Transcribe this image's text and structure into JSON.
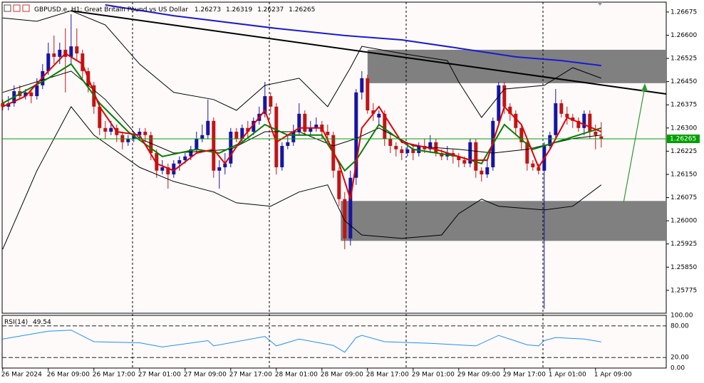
{
  "chart_data": {
    "type": "candlestick",
    "title": "GBPUSD.e, H1:  Great Britain Pound vs US Dollar",
    "categories": [
      "26 Mar 2024",
      null,
      null,
      null,
      null,
      null,
      null,
      null,
      "26 Mar 09:00",
      null,
      null,
      null,
      null,
      null,
      null,
      null,
      "26 Mar 17:00",
      null,
      null,
      null,
      null,
      null,
      null,
      null,
      "27 Mar 01:00",
      null,
      null,
      null,
      null,
      null,
      null,
      null,
      "27 Mar 09:00",
      null,
      null,
      null,
      null,
      null,
      null,
      null,
      "27 Mar 17:00",
      null,
      null,
      null,
      null,
      null,
      null,
      null,
      "28 Mar 01:00",
      null,
      null,
      null,
      null,
      null,
      null,
      null,
      "28 Mar 09:00",
      null,
      null,
      null,
      null,
      null,
      null,
      null,
      "28 Mar 17:00",
      null,
      null,
      null,
      null,
      null,
      null,
      null,
      "29 Mar 01:00",
      null,
      null,
      null,
      null,
      null,
      null,
      null,
      "29 Mar 09:00",
      null,
      null,
      null,
      null,
      null,
      null,
      null,
      "29 Mar 17:00",
      null,
      null,
      null,
      null,
      null,
      null,
      null,
      "1 Apr 01:00",
      null,
      null,
      null,
      null,
      null,
      null,
      null,
      "1 Apr 09:00",
      null
    ],
    "open": [
      1.2638,
      1.26369,
      1.2638,
      1.26419,
      1.26403,
      1.26415,
      1.26403,
      1.26438,
      1.26484,
      1.26541,
      1.2653,
      1.26553,
      1.2653,
      1.26564,
      1.26541,
      1.26484,
      1.26438,
      1.26369,
      1.263,
      1.26288,
      1.263,
      1.26277,
      1.26254,
      1.26266,
      1.26277,
      1.26288,
      1.26277,
      1.26219,
      1.26162,
      1.26173,
      1.2615,
      1.26185,
      1.26196,
      1.26208,
      1.26231,
      1.26266,
      1.26277,
      1.26323,
      1.26162,
      1.26173,
      1.26185,
      1.26288,
      1.26266,
      1.263,
      1.26288,
      1.26323,
      1.26346,
      1.26403,
      1.26369,
      1.26173,
      1.26242,
      1.26254,
      1.26288,
      1.26346,
      1.26288,
      1.263,
      1.26311,
      1.26288,
      1.26277,
      1.26162,
      1.2607,
      1.25943,
      1.26139,
      1.26415,
      1.26461,
      1.26357,
      1.26334,
      1.26346,
      1.26266,
      1.26242,
      1.26231,
      1.26219,
      1.26231,
      1.26219,
      1.26242,
      1.26231,
      1.26254,
      1.26219,
      1.26208,
      1.26219,
      1.26208,
      1.26196,
      1.26185,
      1.26254,
      1.26162,
      1.2615,
      1.26173,
      1.26323,
      1.26438,
      1.26369,
      1.26346,
      1.263,
      1.26254,
      1.26185,
      1.26173,
      1.26162,
      1.26242,
      1.26277,
      1.2638,
      1.26346,
      1.26334,
      1.26323,
      1.263,
      1.26346,
      1.26288,
      1.26273
    ],
    "high": [
      1.26392,
      1.26403,
      1.26438,
      1.26438,
      1.26426,
      1.26426,
      1.26461,
      1.26507,
      1.26576,
      1.26599,
      1.26576,
      1.26622,
      1.26668,
      1.26622,
      1.26553,
      1.26495,
      1.26449,
      1.2638,
      1.26323,
      1.26323,
      1.26311,
      1.26288,
      1.26277,
      1.26288,
      1.263,
      1.263,
      1.26288,
      1.26231,
      1.26196,
      1.26185,
      1.26196,
      1.26208,
      1.26219,
      1.26242,
      1.26288,
      1.26311,
      1.26392,
      1.26334,
      1.26196,
      1.26219,
      1.263,
      1.263,
      1.26311,
      1.26323,
      1.26334,
      1.26369,
      1.26449,
      1.26415,
      1.2638,
      1.26254,
      1.26277,
      1.26311,
      1.2638,
      1.26357,
      1.26323,
      1.26334,
      1.26323,
      1.26311,
      1.26288,
      1.26173,
      1.26093,
      1.26162,
      1.26426,
      1.26484,
      1.26472,
      1.2638,
      1.26357,
      1.26357,
      1.26288,
      1.26254,
      1.26242,
      1.26254,
      1.26242,
      1.26254,
      1.26266,
      1.26277,
      1.26266,
      1.26231,
      1.26242,
      1.26231,
      1.26219,
      1.26208,
      1.26266,
      1.26266,
      1.26173,
      1.26196,
      1.26334,
      1.26449,
      1.26449,
      1.2638,
      1.26357,
      1.26311,
      1.26266,
      1.26196,
      1.26185,
      1.26254,
      1.26288,
      1.26426,
      1.26392,
      1.26369,
      1.26346,
      1.26334,
      1.26357,
      1.26357,
      1.26311,
      1.26319
    ],
    "low": [
      1.26357,
      1.26357,
      1.26369,
      1.26392,
      1.26392,
      1.2638,
      1.26392,
      1.26426,
      1.26472,
      1.26507,
      1.26507,
      1.26415,
      1.26507,
      1.26518,
      1.26461,
      1.26415,
      1.26346,
      1.26277,
      1.26266,
      1.26277,
      1.26254,
      1.26231,
      1.26242,
      1.26254,
      1.26266,
      1.26254,
      1.26196,
      1.26139,
      1.2615,
      1.26104,
      1.26139,
      1.26162,
      1.26185,
      1.26196,
      1.26219,
      1.26254,
      1.26266,
      1.26139,
      1.26104,
      1.2615,
      1.26173,
      1.26254,
      1.26254,
      1.26266,
      1.26277,
      1.26311,
      1.26334,
      1.26346,
      1.2615,
      1.26162,
      1.26231,
      1.26242,
      1.26277,
      1.26277,
      1.26277,
      1.26288,
      1.26266,
      1.26254,
      1.26139,
      1.26047,
      1.25908,
      1.2592,
      1.26116,
      1.26392,
      1.26346,
      1.26323,
      1.26311,
      1.26242,
      1.26219,
      1.26208,
      1.26196,
      1.26208,
      1.26196,
      1.26208,
      1.26219,
      1.26219,
      1.26208,
      1.26196,
      1.26196,
      1.26185,
      1.26173,
      1.26173,
      1.26173,
      1.26139,
      1.26127,
      1.26139,
      1.26162,
      1.26311,
      1.26346,
      1.26323,
      1.26277,
      1.26231,
      1.26162,
      1.26162,
      1.2615,
      1.25715,
      1.26231,
      1.26266,
      1.26334,
      1.26311,
      1.263,
      1.26288,
      1.26277,
      1.26266,
      1.26231,
      1.26237
    ],
    "close": [
      1.26369,
      1.2638,
      1.26419,
      1.26403,
      1.26415,
      1.26403,
      1.26438,
      1.26484,
      1.26541,
      1.2653,
      1.26553,
      1.2653,
      1.26564,
      1.26541,
      1.26484,
      1.26438,
      1.26369,
      1.263,
      1.26288,
      1.263,
      1.26277,
      1.26254,
      1.26266,
      1.26277,
      1.26288,
      1.26277,
      1.26219,
      1.26162,
      1.26173,
      1.2615,
      1.26185,
      1.26196,
      1.26208,
      1.26231,
      1.26266,
      1.26277,
      1.26323,
      1.26162,
      1.26173,
      1.26185,
      1.26288,
      1.26266,
      1.263,
      1.26288,
      1.26323,
      1.26346,
      1.26403,
      1.26369,
      1.26173,
      1.26242,
      1.26254,
      1.26288,
      1.26346,
      1.26288,
      1.263,
      1.26311,
      1.26288,
      1.26277,
      1.26162,
      1.2607,
      1.25943,
      1.26139,
      1.26415,
      1.26461,
      1.26357,
      1.26346,
      1.26346,
      1.26266,
      1.26242,
      1.26231,
      1.26219,
      1.26231,
      1.26219,
      1.26242,
      1.26231,
      1.26254,
      1.26219,
      1.26208,
      1.26219,
      1.26208,
      1.26196,
      1.26185,
      1.26254,
      1.26162,
      1.2615,
      1.26173,
      1.26323,
      1.26438,
      1.26369,
      1.26346,
      1.263,
      1.26254,
      1.26185,
      1.26173,
      1.26162,
      1.26242,
      1.26277,
      1.2638,
      1.26346,
      1.26334,
      1.26323,
      1.263,
      1.26346,
      1.26288,
      1.26277,
      1.26265
    ],
    "up_color": "#1515a3",
    "down_color": "#c01515",
    "last_price_color": "#00a000",
    "xlim": [
      -0.1,
      116.4
    ],
    "ylim": [
      1.25701,
      1.26707
    ],
    "yticks": [
      1.26675,
      {
        "value": 1.266,
        "label": "1.26600"
      },
      1.26525,
      {
        "value": 1.2645,
        "label": "1.26450"
      },
      1.26375,
      {
        "value": 1.263,
        "label": "1.26300"
      },
      1.26225,
      {
        "value": 1.2615,
        "label": "1.26150"
      },
      1.26075,
      {
        "value": 1.26,
        "label": "1.26000"
      },
      1.25925,
      {
        "value": 1.2585,
        "label": "1.25850"
      },
      1.25775
    ],
    "zones": [
      {
        "color": "#808080",
        "x": [
          64,
          116.4
        ],
        "range": [
          1.26445,
          1.26553
        ]
      },
      {
        "color": "#808080",
        "x": [
          59.3,
          116.4
        ],
        "range": [
          1.25935,
          1.26064
        ]
      }
    ],
    "overlays": [
      {
        "color": "#000000",
        "width": 1,
        "x": [
          0,
          6,
          12,
          18,
          24,
          30,
          37,
          41,
          46,
          52,
          57,
          61,
          63,
          70,
          78,
          80,
          84,
          88,
          95,
          100,
          105
        ],
        "values": [
          1.26656,
          1.26645,
          1.26679,
          1.26633,
          1.26507,
          1.26415,
          1.26392,
          1.26357,
          1.26438,
          1.26461,
          1.26369,
          1.26495,
          1.26564,
          1.26541,
          1.26518,
          1.26449,
          1.26334,
          1.26426,
          1.26438,
          1.26495,
          1.26461
        ]
      },
      {
        "color": "#000000",
        "width": 1,
        "x": [
          0,
          6,
          12,
          16,
          24,
          30,
          37,
          41,
          47,
          52,
          57,
          60,
          63,
          70,
          77,
          80,
          84,
          87,
          95,
          100,
          105
        ],
        "values": [
          1.25908,
          1.26162,
          1.26369,
          1.26277,
          1.26173,
          1.26127,
          1.26093,
          1.26058,
          1.26047,
          1.26093,
          1.26116,
          1.26,
          1.25954,
          1.25943,
          1.25954,
          1.26023,
          1.2607,
          1.26047,
          1.26035,
          1.26047,
          1.26116
        ]
      },
      {
        "color": "#000000",
        "width": 1,
        "x": [
          0,
          12,
          18,
          24,
          30,
          40,
          46,
          52,
          58,
          62,
          66,
          72,
          80,
          86,
          92,
          100,
          105
        ],
        "values": [
          1.26415,
          1.26484,
          1.26392,
          1.26266,
          1.26219,
          1.26231,
          1.26288,
          1.26288,
          1.26242,
          1.26266,
          1.263,
          1.26242,
          1.26231,
          1.26219,
          1.26231,
          1.26266,
          1.26277
        ]
      },
      {
        "color": "#1a1ad6",
        "width": 2,
        "x": [
          18,
          30,
          48,
          60,
          70,
          80,
          90,
          98,
          105
        ],
        "values": [
          1.26698,
          1.26663,
          1.26622,
          1.26599,
          1.26585,
          1.26558,
          1.2653,
          1.26518,
          1.26502
        ]
      },
      {
        "color": "#000000",
        "width": 2,
        "x": [
          12,
          116.4
        ],
        "values": [
          1.26679,
          1.2641
        ]
      },
      {
        "color": "#008000",
        "width": 2,
        "x": [
          0,
          8,
          12,
          17,
          22,
          28,
          34,
          38,
          42,
          46,
          50,
          56,
          60,
          62,
          66,
          72,
          80,
          84,
          88,
          93,
          97,
          105
        ],
        "values": [
          1.2638,
          1.26461,
          1.26507,
          1.2638,
          1.26288,
          1.26208,
          1.26231,
          1.26219,
          1.26254,
          1.26311,
          1.26277,
          1.26277,
          1.26162,
          1.26196,
          1.26311,
          1.26231,
          1.26208,
          1.26185,
          1.26311,
          1.26231,
          1.26254,
          1.263
        ]
      },
      {
        "color": "#e00000",
        "width": 2,
        "x": [
          0,
          4,
          8,
          11,
          14,
          17,
          20,
          24,
          27,
          30,
          34,
          37,
          39,
          42,
          46,
          48,
          52,
          56,
          59,
          61,
          63,
          66,
          70,
          76,
          82,
          85,
          88,
          91,
          94,
          96,
          99,
          105
        ],
        "values": [
          1.26369,
          1.26403,
          1.26484,
          1.26541,
          1.26507,
          1.26369,
          1.26288,
          1.26277,
          1.26185,
          1.26162,
          1.26219,
          1.26231,
          1.26185,
          1.26266,
          1.26357,
          1.26254,
          1.263,
          1.263,
          1.26185,
          1.2607,
          1.263,
          1.26369,
          1.26254,
          1.26231,
          1.26196,
          1.26196,
          1.26369,
          1.26311,
          1.26173,
          1.26231,
          1.26334,
          1.26288
        ]
      }
    ],
    "rsi": {
      "title": "RSI(14)",
      "color": "#1e90ff",
      "ylim": [
        0,
        100
      ],
      "yticks": [
        {
          "value": 100,
          "label": "100.00"
        },
        {
          "value": 80,
          "label": "80.00"
        },
        {
          "value": 20,
          "label": "20.00"
        },
        {
          "value": 0,
          "label": "0.00"
        }
      ],
      "x": [
        0,
        8,
        12,
        16,
        24,
        28,
        36,
        37,
        46,
        48,
        52,
        58,
        60,
        62,
        63,
        67,
        75,
        83,
        87,
        92,
        94,
        95,
        97,
        102,
        105
      ],
      "values": [
        55,
        70,
        72,
        50,
        48,
        40,
        52,
        42,
        60,
        42,
        55,
        43,
        30,
        58,
        62,
        50,
        47,
        42,
        62,
        44,
        42,
        52,
        58,
        55,
        49.54
      ]
    }
  }
}
